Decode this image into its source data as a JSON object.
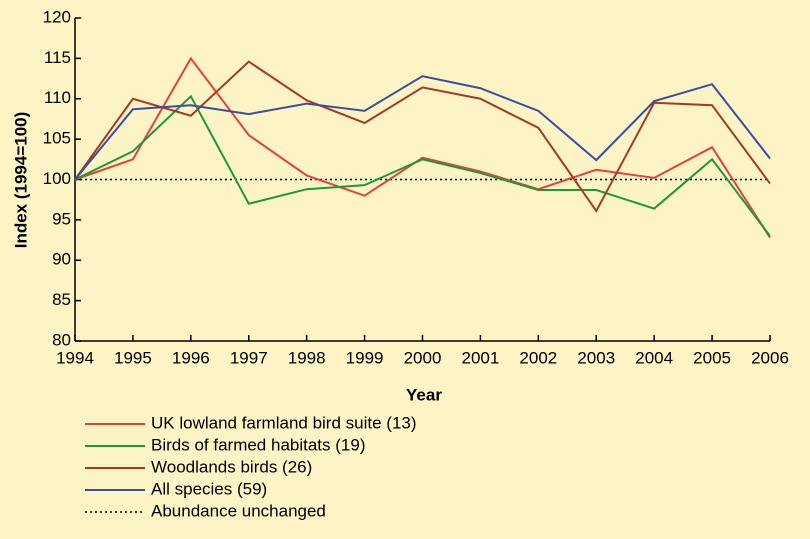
{
  "chart_data": {
    "type": "line",
    "x_label": "Year",
    "y_label": "Index (1994=100)",
    "x": [
      1994,
      1995,
      1996,
      1997,
      1998,
      1999,
      2000,
      2001,
      2002,
      2003,
      2004,
      2005,
      2006
    ],
    "series": [
      {
        "name": "UK lowland farmland bird suite (13)",
        "color": "#e8403a",
        "values": [
          100,
          102.5,
          115,
          105.5,
          100.5,
          98,
          102.7,
          101,
          98.8,
          101.2,
          100.2,
          104,
          92.8
        ]
      },
      {
        "name": "Birds of farmed habitats (19)",
        "color": "#1a9a3a",
        "values": [
          100,
          103.5,
          110.3,
          97,
          98.8,
          99.3,
          102.5,
          100.8,
          98.7,
          98.7,
          96.4,
          102.5,
          93
        ]
      },
      {
        "name": "Woodlands birds (26)",
        "color": "#a83a20",
        "values": [
          100,
          110,
          107.9,
          114.6,
          109.8,
          107,
          111.4,
          110,
          106.4,
          96.1,
          109.5,
          109.2,
          99.5
        ]
      },
      {
        "name": "All species (59)",
        "color": "#3a4ea0",
        "values": [
          100,
          108.7,
          109.2,
          108.1,
          109.4,
          108.5,
          112.8,
          111.3,
          108.5,
          102.4,
          109.7,
          111.8,
          102.6
        ]
      }
    ],
    "reference_line": {
      "value": 100,
      "label": "Abundance unchanged",
      "color": "#000000"
    },
    "xlim": [
      1994,
      2006
    ],
    "xticks": [
      1994,
      1995,
      1996,
      1997,
      1998,
      1999,
      2000,
      2001,
      2002,
      2003,
      2004,
      2005,
      2006
    ],
    "ylim": [
      80,
      120
    ],
    "yticks": [
      80,
      85,
      90,
      95,
      100,
      105,
      110,
      115,
      120
    ],
    "grid": false,
    "legend": "bottom-left"
  }
}
